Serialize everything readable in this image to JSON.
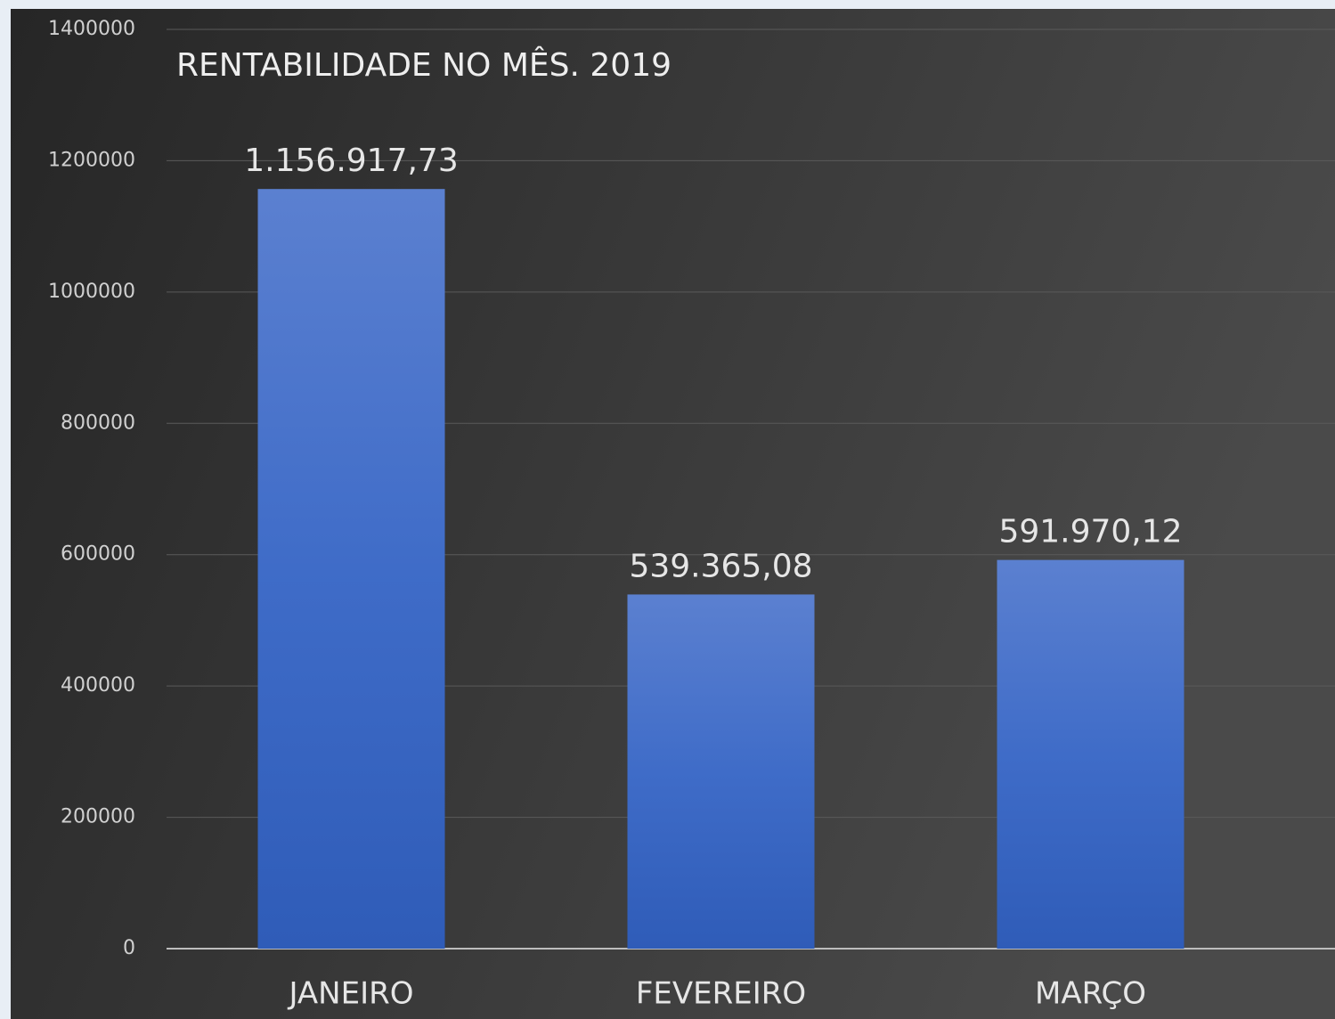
{
  "chart_data": {
    "type": "bar",
    "title": "RENTABILIDADE NO MÊS.  2019",
    "categories": [
      "JANEIRO",
      "FEVEREIRO",
      "MARÇO"
    ],
    "values": [
      1156917.73,
      539365.08,
      591970.12
    ],
    "value_labels": [
      "1.156.917,73",
      "539.365,08",
      "591.970,12"
    ],
    "color": "#4472c4",
    "ylim": [
      0,
      1400000
    ],
    "yticks": [
      0,
      200000,
      400000,
      600000,
      800000,
      1000000,
      1200000,
      1400000
    ],
    "grid": true
  }
}
